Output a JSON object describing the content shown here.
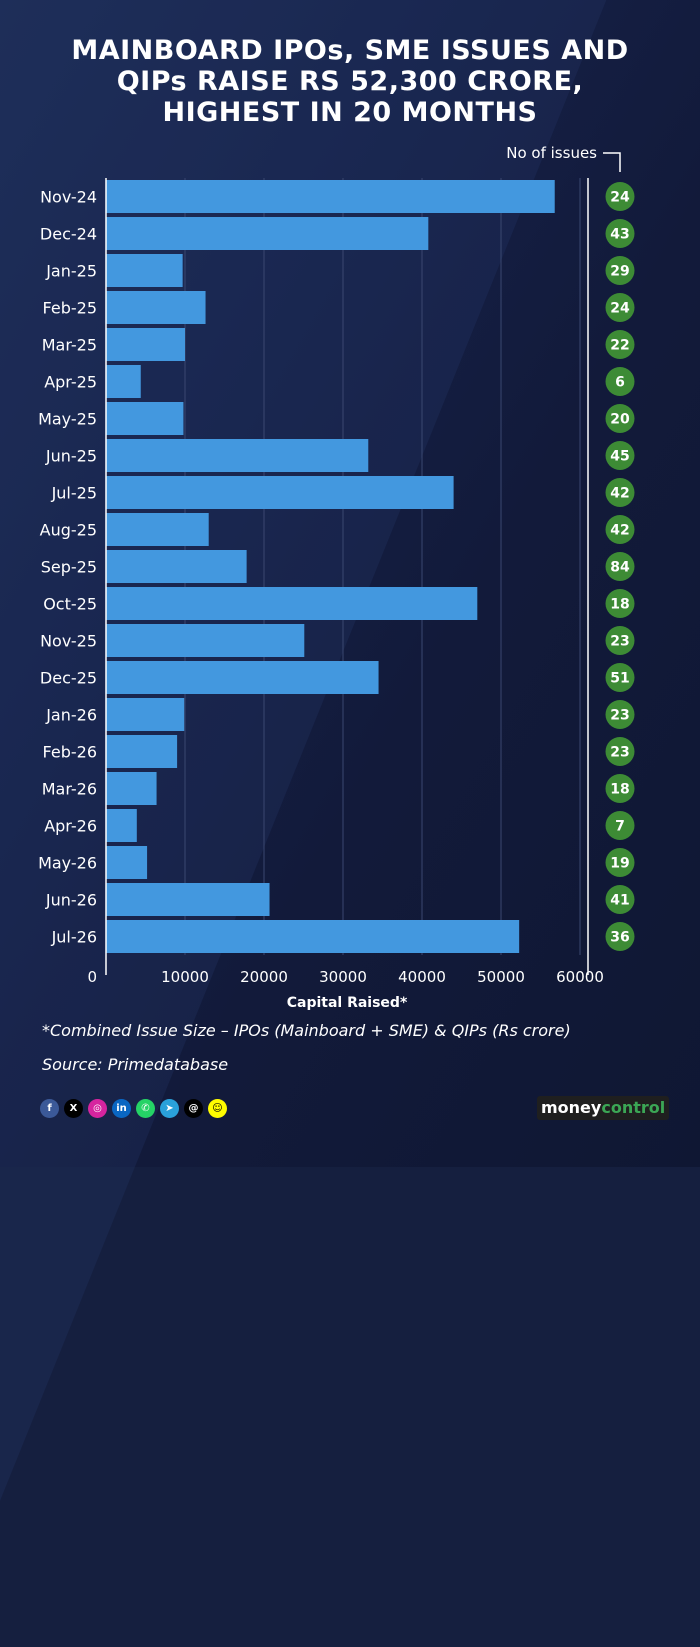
{
  "title_lines": [
    "MAINBOARD IPOs, SME ISSUES AND",
    "QIPs RAISE RS 52,300 CRORE,",
    "HIGHEST IN 20 MONTHS"
  ],
  "issues_header": "No of issues",
  "footnote": "*Combined Issue Size – IPOs (Mainboard + SME) & QIPs (Rs crore)",
  "source": "Source: Primedatabase",
  "logo": {
    "part1": "money",
    "part2": "control"
  },
  "social_icons": [
    {
      "name": "facebook-icon",
      "glyph": "f",
      "color": "#3b5998"
    },
    {
      "name": "x-icon",
      "glyph": "X",
      "color": "#000000"
    },
    {
      "name": "instagram-icon",
      "glyph": "◎",
      "color": "#d6249f"
    },
    {
      "name": "linkedin-icon",
      "glyph": "in",
      "color": "#0a66c2"
    },
    {
      "name": "whatsapp-icon",
      "glyph": "✆",
      "color": "#25d366"
    },
    {
      "name": "telegram-icon",
      "glyph": "➤",
      "color": "#2aa1da"
    },
    {
      "name": "threads-icon",
      "glyph": "@",
      "color": "#000000"
    },
    {
      "name": "snapchat-icon",
      "glyph": "☺",
      "color": "#fffc00"
    }
  ],
  "colors": {
    "bar": "#4398df",
    "badge": "#3d8b35",
    "background": "#151f3f"
  },
  "chart_data": {
    "type": "bar",
    "orientation": "horizontal",
    "title": "MAINBOARD IPOs, SME ISSUES AND QIPs RAISE RS 52,300 CRORE, HIGHEST IN 20 MONTHS",
    "xlabel": "Capital Raised*",
    "ylabel": "",
    "xlim": [
      0,
      60000
    ],
    "xticks": [
      0,
      10000,
      20000,
      30000,
      40000,
      50000,
      60000
    ],
    "grid": true,
    "categories": [
      "Nov-24",
      "Dec-24",
      "Jan-25",
      "Feb-25",
      "Mar-25",
      "Apr-25",
      "May-25",
      "Jun-25",
      "Jul-25",
      "Aug-25",
      "Sep-25",
      "Oct-25",
      "Nov-25",
      "Dec-25",
      "Jan-26",
      "Feb-26",
      "Mar-26",
      "Apr-26",
      "May-26",
      "Jun-26",
      "Jul-26"
    ],
    "values": [
      56800,
      40800,
      9700,
      12600,
      10000,
      4400,
      9800,
      33200,
      44000,
      13000,
      17800,
      47000,
      25100,
      34500,
      9900,
      9000,
      6400,
      3900,
      5200,
      20700,
      52300
    ],
    "issues_label": "No of issues",
    "issues": [
      24,
      43,
      29,
      24,
      22,
      6,
      20,
      45,
      42,
      42,
      84,
      18,
      23,
      51,
      23,
      23,
      18,
      7,
      19,
      41,
      36
    ]
  }
}
